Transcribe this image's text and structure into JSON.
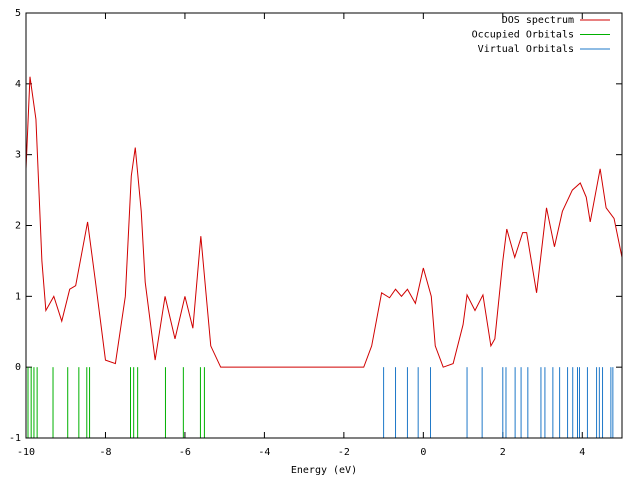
{
  "chart_data": {
    "type": "line",
    "xlabel": "Energy (eV)",
    "xlim": [
      -10,
      5
    ],
    "xticks": [
      -10,
      -8,
      -6,
      -4,
      -2,
      0,
      2,
      4
    ],
    "ylim": [
      -1,
      5
    ],
    "yticks": [
      -1,
      0,
      1,
      2,
      3,
      4,
      5
    ],
    "legend": "top-right",
    "series": [
      {
        "name": "DOS spectrum",
        "color": "#d00000",
        "style": "line",
        "x": [
          -10,
          -9.9,
          -9.75,
          -9.6,
          -9.5,
          -9.3,
          -9.1,
          -8.9,
          -8.75,
          -8.6,
          -8.45,
          -8.25,
          -8.0,
          -7.75,
          -7.5,
          -7.35,
          -7.25,
          -7.1,
          -7.0,
          -6.75,
          -6.5,
          -6.25,
          -6.0,
          -5.8,
          -5.6,
          -5.35,
          -5.1,
          -4,
          -3,
          -2,
          -1.5,
          -1.3,
          -1.05,
          -0.85,
          -0.7,
          -0.55,
          -0.4,
          -0.2,
          0,
          0.2,
          0.3,
          0.5,
          0.75,
          1.0,
          1.1,
          1.3,
          1.5,
          1.7,
          1.8,
          2.0,
          2.1,
          2.3,
          2.5,
          2.6,
          2.85,
          3.1,
          3.3,
          3.5,
          3.75,
          3.95,
          4.1,
          4.2,
          4.45,
          4.6,
          4.8,
          5.0
        ],
        "values": [
          2.8,
          4.1,
          3.5,
          1.5,
          0.8,
          1.0,
          0.65,
          1.1,
          1.15,
          1.6,
          2.05,
          1.2,
          0.1,
          0.05,
          1.0,
          2.7,
          3.1,
          2.2,
          1.2,
          0.1,
          1.0,
          0.4,
          1.0,
          0.55,
          1.85,
          0.3,
          0.0,
          0,
          0,
          0,
          0.0,
          0.3,
          1.05,
          0.98,
          1.1,
          1.0,
          1.1,
          0.9,
          1.4,
          1.0,
          0.3,
          0.0,
          0.05,
          0.6,
          1.02,
          0.8,
          1.02,
          0.3,
          0.4,
          1.5,
          1.95,
          1.55,
          1.9,
          1.9,
          1.05,
          2.25,
          1.7,
          2.2,
          2.5,
          2.6,
          2.4,
          2.05,
          2.8,
          2.25,
          2.1,
          1.55
        ]
      },
      {
        "name": "Occupied Orbitals",
        "color": "#00b000",
        "style": "impulses",
        "x": [
          -9.95,
          -9.87,
          -9.8,
          -9.72,
          -9.32,
          -8.95,
          -8.67,
          -8.47,
          -8.4,
          -7.37,
          -7.29,
          -7.19,
          -6.49,
          -6.04,
          -5.61,
          -5.51
        ]
      },
      {
        "name": "Virtual Orbitals",
        "color": "#1e78c8",
        "style": "impulses",
        "x": [
          -1.0,
          -0.7,
          -0.4,
          -0.13,
          0.18,
          1.1,
          1.48,
          2.0,
          2.08,
          2.31,
          2.46,
          2.63,
          2.96,
          3.06,
          3.26,
          3.43,
          3.63,
          3.76,
          3.88,
          3.93,
          4.13,
          4.36,
          4.43,
          4.51,
          4.72,
          4.77
        ]
      }
    ]
  }
}
